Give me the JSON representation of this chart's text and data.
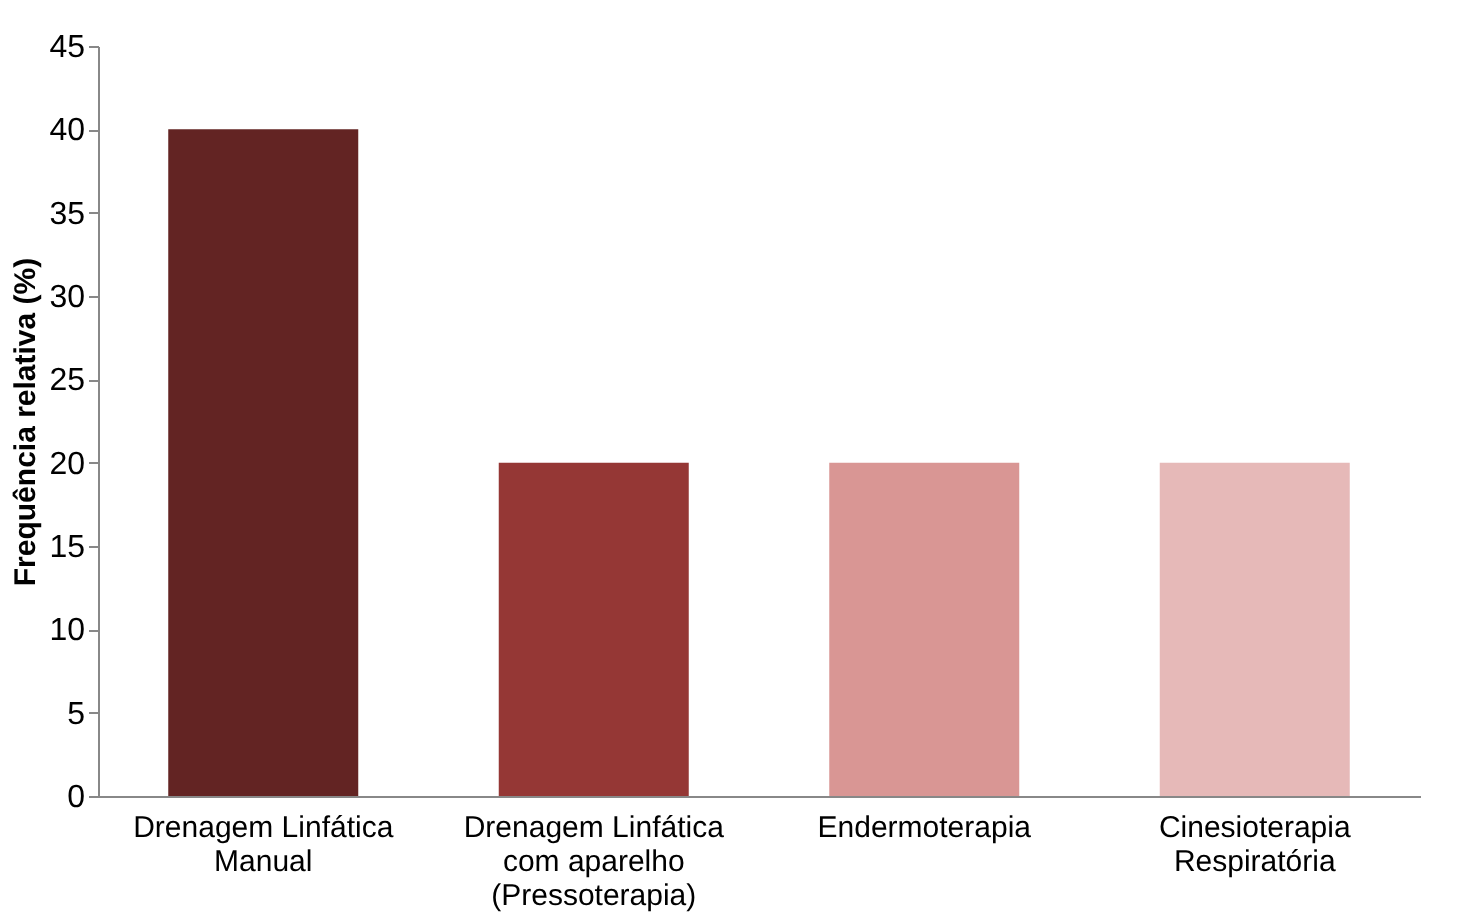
{
  "chart_data": {
    "type": "bar",
    "ylabel": "Frequência relativa (%)",
    "categories": [
      "Drenagem Linfática\nManual",
      "Drenagem Linfática\ncom aparelho\n(Pressoterapia)",
      "Endermoterapia",
      "Cinesioterapia\nRespiratória"
    ],
    "values": [
      40,
      20,
      20,
      20
    ],
    "colors": [
      "#632423",
      "#953735",
      "#d99694",
      "#e6b9b8"
    ],
    "ylim": [
      0,
      45
    ],
    "yticks": [
      0,
      5,
      10,
      15,
      20,
      25,
      30,
      35,
      40,
      45
    ],
    "grid": false
  }
}
